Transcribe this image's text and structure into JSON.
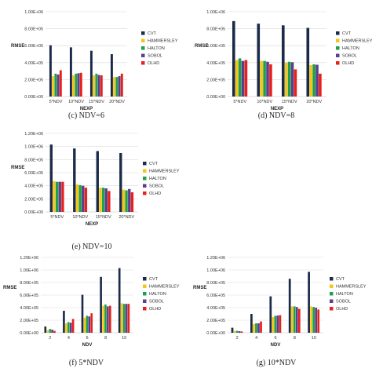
{
  "colors": {
    "CVT": "#1b2a49",
    "HAMMERSLEY": "#f5c518",
    "HALTON": "#1fa04a",
    "SOBOL": "#5b3f8c",
    "OLHD": "#e8201c",
    "gridline": "#d9d9d9",
    "axis": "#bfbfbf"
  },
  "legend_entries": [
    "CVT",
    "HAMMERSLEY",
    "HALTON",
    "SOBOL",
    "OLHD"
  ],
  "chart_data": [
    {
      "type": "bar",
      "caption": "(c) NDV=6",
      "ylabel": "RMSE",
      "xlabel": "NEXP",
      "categories": [
        "5*NDV",
        "10*NDV",
        "15*NDV",
        "20*NDV"
      ],
      "yticks": [
        "0.00E+00",
        "2.00E+05",
        "4.00E+05",
        "6.00E+05",
        "8.00E+05",
        "1.00E+06"
      ],
      "ylim": [
        0,
        1000000
      ],
      "grid": true,
      "legend": "right",
      "series": [
        {
          "name": "CVT",
          "values": [
            605000,
            580000,
            540000,
            500000
          ]
        },
        {
          "name": "HAMMERSLEY",
          "values": [
            240000,
            250000,
            250000,
            230000
          ]
        },
        {
          "name": "HALTON",
          "values": [
            270000,
            270000,
            270000,
            230000
          ]
        },
        {
          "name": "SOBOL",
          "values": [
            260000,
            275000,
            255000,
            240000
          ]
        },
        {
          "name": "OLHD",
          "values": [
            310000,
            280000,
            250000,
            270000
          ]
        }
      ]
    },
    {
      "type": "bar",
      "caption": "(d) NDV=8",
      "ylabel": "RMSE",
      "xlabel": "NEXP",
      "categories": [
        "5*NDV",
        "10*NDV",
        "15*NDV",
        "20*NDV"
      ],
      "yticks": [
        "0.00E+00",
        "2.00E+05",
        "4.00E+05",
        "6.00E+05",
        "8.00E+05",
        "1.00E+06"
      ],
      "ylim": [
        0,
        1000000
      ],
      "grid": true,
      "legend": "right",
      "series": [
        {
          "name": "CVT",
          "values": [
            890000,
            860000,
            840000,
            810000
          ]
        },
        {
          "name": "HAMMERSLEY",
          "values": [
            430000,
            420000,
            400000,
            370000
          ]
        },
        {
          "name": "HALTON",
          "values": [
            450000,
            420000,
            410000,
            380000
          ]
        },
        {
          "name": "SOBOL",
          "values": [
            420000,
            410000,
            405000,
            375000
          ]
        },
        {
          "name": "OLHD",
          "values": [
            430000,
            380000,
            320000,
            270000
          ]
        }
      ]
    },
    {
      "type": "bar",
      "caption": "(e) NDV=10",
      "ylabel": "RMSE",
      "xlabel": "NEXP",
      "categories": [
        "5*NDV",
        "10*NDV",
        "15*NDV",
        "20*NDV"
      ],
      "yticks": [
        "0.00E+00",
        "2.00E+05",
        "4.00E+05",
        "6.00E+05",
        "8.00E+05",
        "1.00E+06",
        "1.20E+06"
      ],
      "ylim": [
        0,
        1200000
      ],
      "grid": true,
      "legend": "right",
      "series": [
        {
          "name": "CVT",
          "values": [
            1030000,
            970000,
            930000,
            900000
          ]
        },
        {
          "name": "HAMMERSLEY",
          "values": [
            470000,
            420000,
            370000,
            340000
          ]
        },
        {
          "name": "HALTON",
          "values": [
            460000,
            410000,
            370000,
            330000
          ]
        },
        {
          "name": "SOBOL",
          "values": [
            460000,
            400000,
            360000,
            350000
          ]
        },
        {
          "name": "OLHD",
          "values": [
            460000,
            370000,
            320000,
            300000
          ]
        }
      ]
    },
    {
      "type": "bar",
      "caption": "(f) 5*NDV",
      "ylabel": "RMSE",
      "xlabel": "NDV",
      "categories": [
        "2",
        "4",
        "6",
        "8",
        "10"
      ],
      "yticks": [
        "0.00E+00",
        "2.00E+05",
        "4.00E+05",
        "6.00E+05",
        "8.00E+05",
        "1.00E+06",
        "1.20E+06"
      ],
      "ylim": [
        0,
        1200000
      ],
      "grid": true,
      "legend": "right",
      "series": [
        {
          "name": "CVT",
          "values": [
            100000,
            350000,
            605000,
            890000,
            1030000
          ]
        },
        {
          "name": "HAMMERSLEY",
          "values": [
            40000,
            150000,
            240000,
            430000,
            470000
          ]
        },
        {
          "name": "HALTON",
          "values": [
            60000,
            170000,
            270000,
            450000,
            460000
          ]
        },
        {
          "name": "SOBOL",
          "values": [
            50000,
            160000,
            260000,
            420000,
            460000
          ]
        },
        {
          "name": "OLHD",
          "values": [
            30000,
            220000,
            310000,
            430000,
            460000
          ]
        }
      ]
    },
    {
      "type": "bar",
      "caption": "(g) 10*NDV",
      "ylabel": "RMSE",
      "xlabel": "NDV",
      "categories": [
        "2",
        "4",
        "6",
        "8",
        "10"
      ],
      "yticks": [
        "0.00E+00",
        "2.00E+05",
        "4.00E+05",
        "6.00E+05",
        "8.00E+05",
        "1.00E+06",
        "1.20E+06"
      ],
      "ylim": [
        0,
        1200000
      ],
      "grid": true,
      "legend": "right",
      "series": [
        {
          "name": "CVT",
          "values": [
            80000,
            300000,
            580000,
            860000,
            970000
          ]
        },
        {
          "name": "HAMMERSLEY",
          "values": [
            30000,
            140000,
            250000,
            420000,
            420000
          ]
        },
        {
          "name": "HALTON",
          "values": [
            30000,
            150000,
            270000,
            420000,
            410000
          ]
        },
        {
          "name": "SOBOL",
          "values": [
            25000,
            150000,
            275000,
            410000,
            400000
          ]
        },
        {
          "name": "OLHD",
          "values": [
            20000,
            180000,
            280000,
            380000,
            370000
          ]
        }
      ]
    }
  ]
}
